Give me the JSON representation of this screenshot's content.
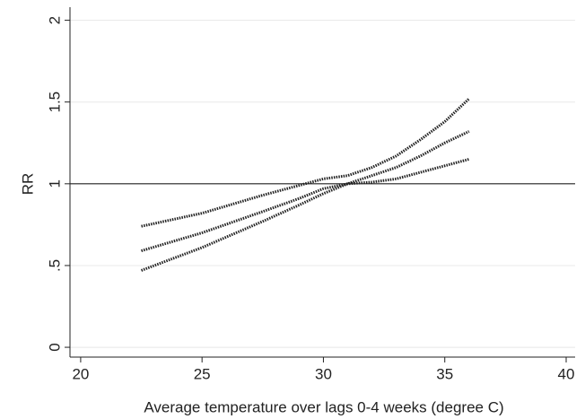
{
  "chart_data": {
    "type": "line",
    "x_label": "Average temperature over lags 0-4 weeks (degree C)",
    "y_label": "RR",
    "x": [
      22.5,
      25,
      27.5,
      29,
      30,
      31,
      32,
      33,
      34,
      35,
      36
    ],
    "series": [
      {
        "color": "#222222",
        "values": [
          0.74,
          0.82,
          0.93,
          0.99,
          1.03,
          1.05,
          1.1,
          1.17,
          1.27,
          1.38,
          1.52
        ]
      },
      {
        "color": "#222222",
        "values": [
          0.59,
          0.7,
          0.83,
          0.91,
          0.97,
          1.0,
          1.05,
          1.1,
          1.17,
          1.25,
          1.32
        ]
      },
      {
        "color": "#222222",
        "values": [
          0.47,
          0.61,
          0.77,
          0.87,
          0.94,
          1.0,
          1.01,
          1.03,
          1.07,
          1.11,
          1.15
        ]
      }
    ],
    "reference_line": 1,
    "xlim": [
      19.56,
      40.37
    ],
    "xticks": [
      20,
      25,
      30,
      35,
      40
    ],
    "ylim": [
      -0.06,
      2.08
    ],
    "yticks": [
      0,
      {
        "value": 0.5,
        "label": ".5"
      },
      1,
      1.5,
      2
    ],
    "grid": true
  }
}
